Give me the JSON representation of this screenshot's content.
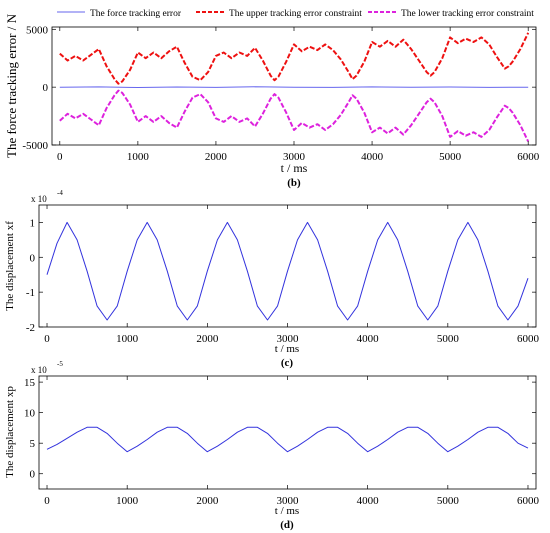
{
  "chart_data": [
    {
      "type": "line",
      "panel_label": "(b)",
      "xlabel": "t / ms",
      "ylabel": "The force tracking error / N",
      "xlim": [
        -100,
        6100
      ],
      "ylim": [
        -5000,
        5200
      ],
      "xticks": [
        "0",
        "1000",
        "2000",
        "3000",
        "4000",
        "5000",
        "6000"
      ],
      "yticks": [
        "-5000",
        "0",
        "5000"
      ],
      "legend_position": "top",
      "series": [
        {
          "name": "The force tracking error",
          "color": "#6666ee",
          "style": "solid",
          "x": [
            0,
            500,
            1000,
            1500,
            2000,
            2500,
            3000,
            3500,
            4000,
            4500,
            5000,
            5500,
            6000
          ],
          "y": [
            0,
            20,
            -30,
            10,
            -20,
            30,
            0,
            -20,
            20,
            -10,
            10,
            -20,
            0
          ]
        },
        {
          "name": "The upper tracking error constraint",
          "color": "#ee1111",
          "style": "dashed",
          "x": [
            0,
            100,
            200,
            300,
            400,
            500,
            600,
            700,
            750,
            800,
            900,
            1000,
            1100,
            1200,
            1300,
            1400,
            1500,
            1600,
            1700,
            1800,
            1900,
            2000,
            2100,
            2200,
            2300,
            2400,
            2500,
            2600,
            2700,
            2750,
            2800,
            2900,
            3000,
            3100,
            3200,
            3300,
            3400,
            3500,
            3600,
            3700,
            3750,
            3800,
            3900,
            4000,
            4100,
            4200,
            4300,
            4400,
            4500,
            4600,
            4700,
            4750,
            4800,
            4900,
            5000,
            5100,
            5200,
            5300,
            5400,
            5500,
            5600,
            5700,
            5750,
            5800,
            5900,
            6000
          ],
          "y": [
            2900,
            2300,
            2700,
            2300,
            2800,
            3300,
            1800,
            700,
            300,
            500,
            1500,
            3000,
            2500,
            3000,
            2500,
            3100,
            3500,
            2100,
            900,
            600,
            1300,
            2700,
            3000,
            2500,
            3000,
            2700,
            3400,
            2300,
            1000,
            600,
            900,
            2200,
            3700,
            3100,
            3500,
            3200,
            3700,
            3200,
            2400,
            1300,
            700,
            1000,
            2200,
            3900,
            3500,
            4000,
            3500,
            4100,
            3300,
            2300,
            1300,
            1000,
            1300,
            2500,
            4300,
            3800,
            4200,
            3900,
            4300,
            3700,
            2600,
            1600,
            1800,
            2200,
            3300,
            4700
          ]
        },
        {
          "name": "The lower tracking error constraint",
          "color": "#dd22dd",
          "style": "dashed",
          "x": [
            0,
            100,
            200,
            300,
            400,
            500,
            600,
            700,
            750,
            800,
            900,
            1000,
            1100,
            1200,
            1300,
            1400,
            1500,
            1600,
            1700,
            1800,
            1900,
            2000,
            2100,
            2200,
            2300,
            2400,
            2500,
            2600,
            2700,
            2750,
            2800,
            2900,
            3000,
            3100,
            3200,
            3300,
            3400,
            3500,
            3600,
            3700,
            3750,
            3800,
            3900,
            4000,
            4100,
            4200,
            4300,
            4400,
            4500,
            4600,
            4700,
            4750,
            4800,
            4900,
            5000,
            5100,
            5200,
            5300,
            5400,
            5500,
            5600,
            5700,
            5750,
            5800,
            5900,
            6000
          ],
          "y": [
            -2900,
            -2300,
            -2700,
            -2300,
            -2800,
            -3300,
            -1800,
            -700,
            -300,
            -500,
            -1500,
            -3000,
            -2500,
            -3000,
            -2500,
            -3100,
            -3500,
            -2100,
            -900,
            -600,
            -1300,
            -2700,
            -3000,
            -2500,
            -3000,
            -2700,
            -3400,
            -2300,
            -1000,
            -600,
            -900,
            -2200,
            -3700,
            -3100,
            -3500,
            -3200,
            -3700,
            -3200,
            -2400,
            -1300,
            -700,
            -1000,
            -2200,
            -3900,
            -3500,
            -4000,
            -3500,
            -4100,
            -3300,
            -2300,
            -1300,
            -1000,
            -1300,
            -2500,
            -4300,
            -3800,
            -4200,
            -3900,
            -4300,
            -3700,
            -2600,
            -1600,
            -1800,
            -2200,
            -3300,
            -4700
          ]
        }
      ]
    },
    {
      "type": "line",
      "panel_label": "(c)",
      "xlabel": "t / ms",
      "ylabel": "The displacement xf",
      "axis_multiplier": "x 10",
      "axis_exponent": "-4",
      "xlim": [
        -100,
        6100
      ],
      "ylim": [
        -2,
        1.5
      ],
      "xticks": [
        "0",
        "1000",
        "2000",
        "3000",
        "4000",
        "5000",
        "6000"
      ],
      "yticks": [
        "-2",
        "-1",
        "0",
        "1"
      ],
      "series": [
        {
          "color": "#3333dd",
          "x": [
            0,
            125,
            250,
            375,
            500,
            625,
            750,
            875,
            1000,
            1125,
            1250,
            1375,
            1500,
            1625,
            1750,
            1875,
            2000,
            2125,
            2250,
            2375,
            2500,
            2625,
            2750,
            2875,
            3000,
            3125,
            3250,
            3375,
            3500,
            3625,
            3750,
            3875,
            4000,
            4125,
            4250,
            4375,
            4500,
            4625,
            4750,
            4875,
            5000,
            5125,
            5250,
            5375,
            5500,
            5625,
            5750,
            5875,
            6000
          ],
          "y": [
            -0.5,
            0.4,
            1.0,
            0.5,
            -0.4,
            -1.4,
            -1.8,
            -1.4,
            -0.4,
            0.5,
            1.0,
            0.5,
            -0.4,
            -1.4,
            -1.8,
            -1.4,
            -0.4,
            0.5,
            1.0,
            0.5,
            -0.4,
            -1.4,
            -1.8,
            -1.4,
            -0.4,
            0.5,
            1.0,
            0.5,
            -0.4,
            -1.4,
            -1.8,
            -1.4,
            -0.4,
            0.5,
            1.0,
            0.5,
            -0.4,
            -1.4,
            -1.8,
            -1.4,
            -0.4,
            0.5,
            1.0,
            0.5,
            -0.4,
            -1.4,
            -1.8,
            -1.4,
            -0.6
          ]
        }
      ]
    },
    {
      "type": "line",
      "panel_label": "(d)",
      "xlabel": "t / ms",
      "ylabel": "The displacement xp",
      "axis_multiplier": "x 10",
      "axis_exponent": "-5",
      "xlim": [
        -100,
        6100
      ],
      "ylim": [
        -2.5,
        16
      ],
      "xticks": [
        "0",
        "1000",
        "2000",
        "3000",
        "4000",
        "5000",
        "6000"
      ],
      "yticks": [
        "0",
        "5",
        "10",
        "15"
      ],
      "series": [
        {
          "color": "#3333dd",
          "x": [
            0,
            125,
            250,
            375,
            500,
            625,
            750,
            875,
            1000,
            1125,
            1250,
            1375,
            1500,
            1625,
            1750,
            1875,
            2000,
            2125,
            2250,
            2375,
            2500,
            2625,
            2750,
            2875,
            3000,
            3125,
            3250,
            3375,
            3500,
            3625,
            3750,
            3875,
            4000,
            4125,
            4250,
            4375,
            4500,
            4625,
            4750,
            4875,
            5000,
            5125,
            5250,
            5375,
            5500,
            5625,
            5750,
            5875,
            6000
          ],
          "y": [
            4.0,
            4.8,
            5.8,
            6.8,
            7.6,
            7.6,
            6.6,
            5.0,
            3.6,
            4.5,
            5.6,
            6.8,
            7.6,
            7.6,
            6.6,
            5.0,
            3.6,
            4.5,
            5.6,
            6.8,
            7.6,
            7.6,
            6.6,
            5.0,
            3.6,
            4.5,
            5.6,
            6.8,
            7.6,
            7.6,
            6.6,
            5.0,
            3.6,
            4.5,
            5.6,
            6.8,
            7.6,
            7.6,
            6.6,
            5.0,
            3.6,
            4.5,
            5.6,
            6.8,
            7.6,
            7.6,
            6.6,
            5.0,
            4.2
          ]
        }
      ]
    }
  ]
}
